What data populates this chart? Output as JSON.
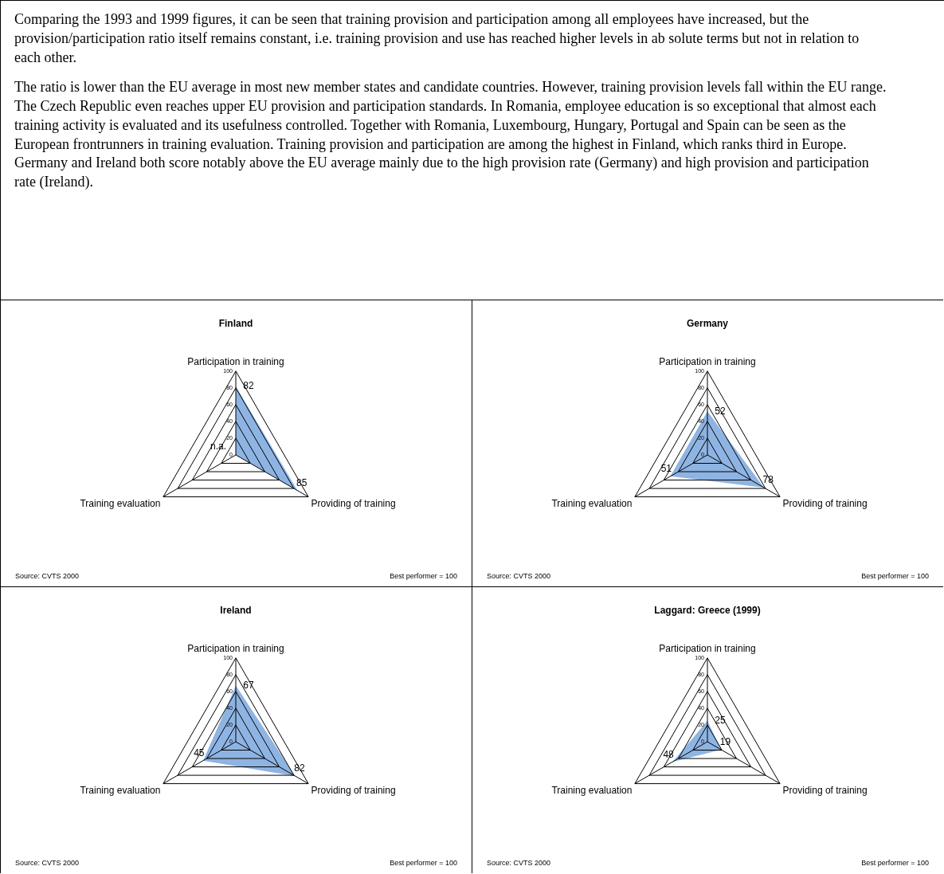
{
  "chart_data": [
    {
      "type": "other",
      "annotations": [
        "Comparing the 1993 and 1999 figures, it can be seen that training provision and participation among all employees have increased, but the provision/participation ratio itself remains constant, i.e. training provision and use has reached higher levels in ab solute terms but not in relation to each other.",
        "The ratio is lower than the EU average in most new member states and candidate countries. However, training provision levels fall within the EU range. The Czech Republic even reaches upper EU provision and participation standards. In Romania, employee education is so exceptional that almost each training activity is evaluated and its usefulness controlled. Together with Romania, Luxembourg, Hungary, Portugal and Spain can be seen as the European frontrunners in training evaluation. Training provision and participation are among the highest in Finland, which ranks third in Europe. Germany and Ireland both score notably above the EU average mainly due to the high provision rate (Germany) and high provision and participation rate (Ireland)."
      ]
    },
    {
      "type": "radar",
      "title": "Finland",
      "categories": [
        "Participation in training",
        "Providing of training",
        "Training evaluation"
      ],
      "series": [
        {
          "color": "#8eb4e3",
          "values": [
            82,
            85,
            null
          ],
          "value_labels": [
            "82",
            "85",
            "n.a."
          ]
        }
      ],
      "ylim": [
        0,
        100
      ],
      "yticks": [
        0,
        20,
        40,
        60,
        80,
        100
      ],
      "grid": true,
      "annotations": [
        "Source: CVTS 2000",
        "Best performer = 100"
      ]
    },
    {
      "type": "radar",
      "title": "Germany",
      "categories": [
        "Participation in training",
        "Providing of training",
        "Training evaluation"
      ],
      "series": [
        {
          "color": "#8eb4e3",
          "values": [
            52,
            78,
            51
          ]
        }
      ],
      "ylim": [
        0,
        100
      ],
      "yticks": [
        0,
        20,
        40,
        60,
        80,
        100
      ],
      "grid": true,
      "data_labels": true,
      "annotations": [
        "Source: CVTS 2000",
        "Best performer = 100"
      ]
    },
    {
      "type": "radar",
      "title": "Ireland",
      "categories": [
        "Participation in training",
        "Providing of training",
        "Training evaluation"
      ],
      "series": [
        {
          "color": "#8eb4e3",
          "values": [
            67,
            82,
            45
          ]
        }
      ],
      "ylim": [
        0,
        100
      ],
      "yticks": [
        0,
        20,
        40,
        60,
        80,
        100
      ],
      "grid": true,
      "data_labels": true,
      "annotations": [
        "Source: CVTS 2000",
        "Best performer = 100"
      ]
    },
    {
      "type": "radar",
      "title": "Laggard: Greece (1999)",
      "categories": [
        "Participation in training",
        "Providing of training",
        "Training evaluation"
      ],
      "series": [
        {
          "color": "#8eb4e3",
          "values": [
            25,
            19,
            48
          ]
        }
      ],
      "ylim": [
        0,
        100
      ],
      "yticks": [
        0,
        20,
        40,
        60,
        80,
        100
      ],
      "grid": true,
      "data_labels": true,
      "annotations": [
        "Source: CVTS 2000",
        "Best performer = 100"
      ]
    }
  ]
}
